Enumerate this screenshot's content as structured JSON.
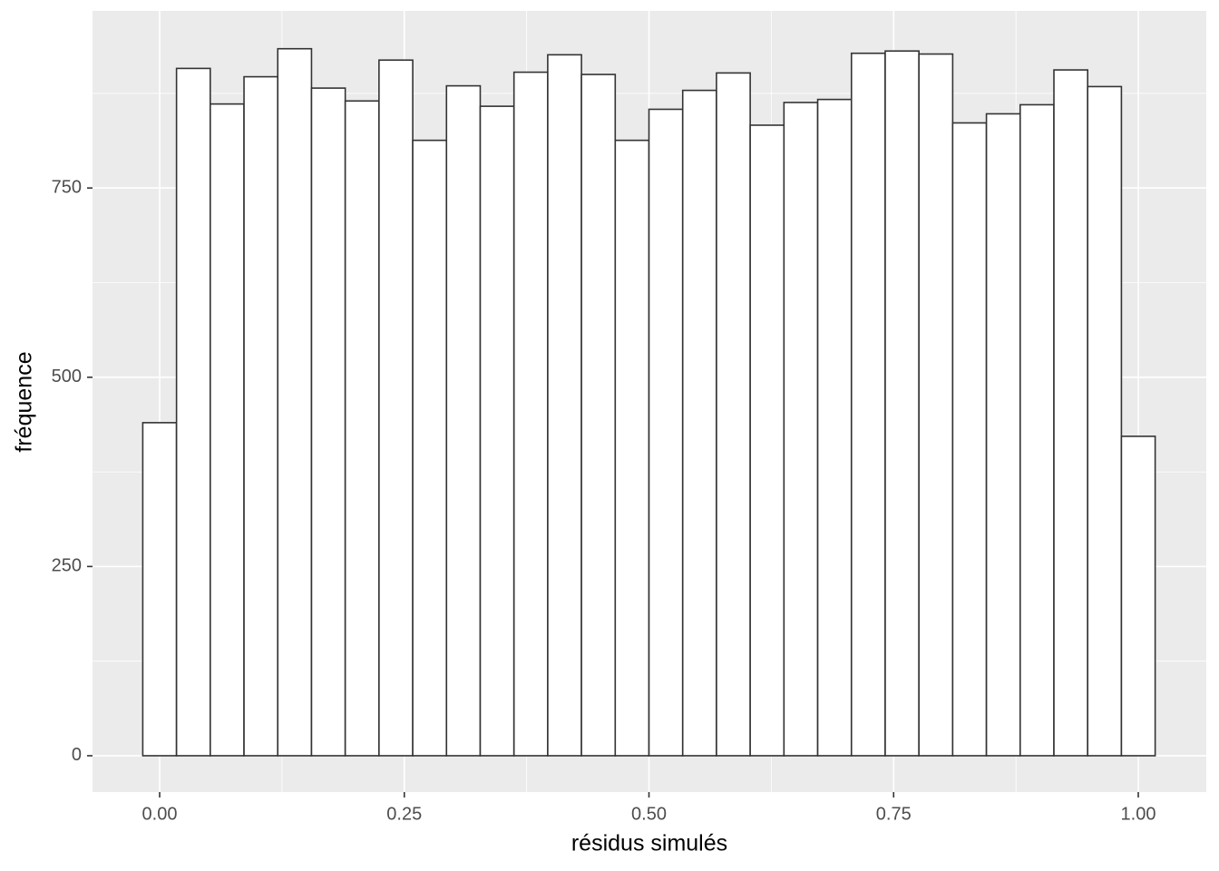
{
  "chart_data": {
    "type": "histogram",
    "x_label": "résidus simulés",
    "y_label": "fréquence",
    "bins": [
      -0.017241,
      0.017241,
      0.051724,
      0.086207,
      0.12069,
      0.155172,
      0.189655,
      0.224138,
      0.258621,
      0.293103,
      0.327586,
      0.362069,
      0.396552,
      0.431034,
      0.465517,
      0.5,
      0.534483,
      0.568966,
      0.603448,
      0.637931,
      0.672414,
      0.706897,
      0.741379,
      0.775862,
      0.810345,
      0.844828,
      0.87931,
      0.913793,
      0.948276,
      0.982759,
      1.017241
    ],
    "values": [
      440,
      908,
      861,
      897,
      934,
      882,
      865,
      919,
      813,
      885,
      858,
      903,
      926,
      900,
      813,
      854,
      879,
      902,
      833,
      863,
      867,
      928,
      931,
      927,
      836,
      848,
      860,
      906,
      884,
      422
    ],
    "fill": "#ffffff",
    "color": "#333333",
    "xlim": [
      -0.0686,
      1.0695
    ],
    "ylim": [
      -48,
      984
    ],
    "xticks": [
      {
        "value": 0,
        "label": "0.00"
      },
      {
        "value": 0.25,
        "label": "0.25"
      },
      {
        "value": 0.5,
        "label": "0.50"
      },
      {
        "value": 0.75,
        "label": "0.75"
      },
      {
        "value": 1,
        "label": "1.00"
      }
    ],
    "yticks": [
      0,
      250,
      500,
      750
    ],
    "grid": true,
    "panel_color": "#ebebeb"
  }
}
